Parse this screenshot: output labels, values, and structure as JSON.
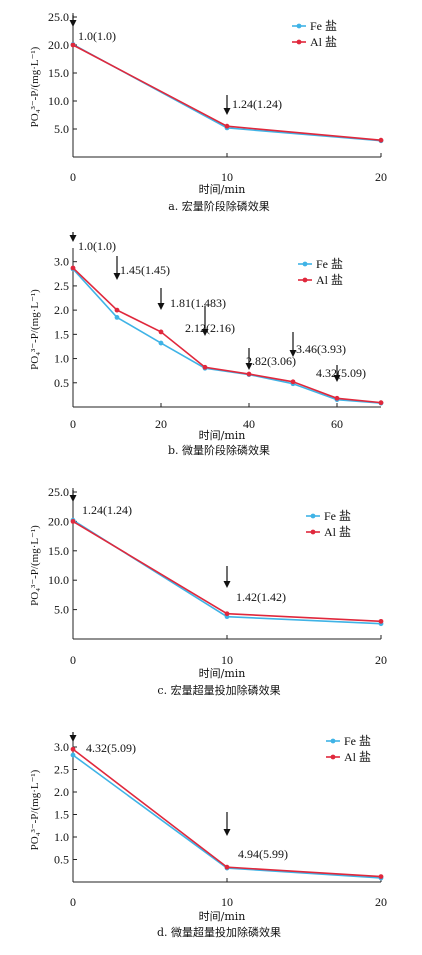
{
  "legend": {
    "fe_label": "Fe 盐",
    "al_label": "Al 盐"
  },
  "colors": {
    "fe": "#3fb3e6",
    "al": "#e0283c",
    "axis": "#222222"
  },
  "chart_data": [
    {
      "type": "line",
      "caption": "a. 宏量阶段除磷效果",
      "ylabel": "PO₄³⁻-P/(mg·L⁻¹)",
      "xlabel": "时间/min",
      "xlim": [
        0,
        20
      ],
      "ylim": [
        0,
        25
      ],
      "xticks": [
        0,
        10,
        20
      ],
      "yticks": [
        "5.0",
        "10.0",
        "15.0",
        "20.0",
        "25.0"
      ],
      "series": [
        {
          "name": "Fe 盐",
          "x": [
            0,
            10,
            20
          ],
          "y": [
            20.1,
            5.2,
            2.9
          ]
        },
        {
          "name": "Al 盐",
          "x": [
            0,
            10,
            20
          ],
          "y": [
            20.0,
            5.5,
            3.0
          ]
        }
      ],
      "annotations": [
        {
          "x": 0,
          "text": "1.0(1.0)"
        },
        {
          "x": 10,
          "text": "1.24(1.24)"
        }
      ]
    },
    {
      "type": "line",
      "caption": "b. 微量阶段除磷效果",
      "ylabel": "PO₄³⁻-P/(mg·L⁻¹)",
      "xlabel": "时间/min",
      "xlim": [
        0,
        70
      ],
      "ylim": [
        0,
        3.2
      ],
      "xticks": [
        0,
        20,
        40,
        60
      ],
      "yticks": [
        "0.5",
        "1.0",
        "1.5",
        "2.0",
        "2.5",
        "3.0"
      ],
      "series": [
        {
          "name": "Fe 盐",
          "x": [
            0,
            10,
            20,
            30,
            40,
            50,
            60,
            70
          ],
          "y": [
            2.85,
            1.85,
            1.32,
            0.8,
            0.67,
            0.48,
            0.15,
            0.08
          ]
        },
        {
          "name": "Al 盐",
          "x": [
            0,
            10,
            20,
            30,
            40,
            50,
            60,
            70
          ],
          "y": [
            2.87,
            2.0,
            1.55,
            0.82,
            0.68,
            0.52,
            0.18,
            0.09
          ]
        }
      ],
      "annotations": [
        {
          "x": 0,
          "text": "1.0(1.0)"
        },
        {
          "x": 10,
          "text": "1.45(1.45)"
        },
        {
          "x": 20,
          "text": "1.81(1.483)"
        },
        {
          "x": 30,
          "text": "2.12(2.16)"
        },
        {
          "x": 40,
          "text": "2.82(3.06)"
        },
        {
          "x": 50,
          "text": "3.46(3.93)"
        },
        {
          "x": 60,
          "text": "4.32(5.09)"
        }
      ]
    },
    {
      "type": "line",
      "caption": "c. 宏量超量投加除磷效果",
      "ylabel": "PO₄³⁻-P/(mg·L⁻¹)",
      "xlabel": "时间/min",
      "xlim": [
        0,
        20
      ],
      "ylim": [
        0,
        25
      ],
      "xticks": [
        0,
        10,
        20
      ],
      "yticks": [
        "5.0",
        "10.0",
        "15.0",
        "20.0",
        "25.0"
      ],
      "series": [
        {
          "name": "Fe 盐",
          "x": [
            0,
            10,
            20
          ],
          "y": [
            20.2,
            3.8,
            2.6
          ]
        },
        {
          "name": "Al 盐",
          "x": [
            0,
            10,
            20
          ],
          "y": [
            20.0,
            4.3,
            3.0
          ]
        }
      ],
      "annotations": [
        {
          "x": 0,
          "text": "1.24(1.24)"
        },
        {
          "x": 10,
          "text": "1.42(1.42)"
        }
      ]
    },
    {
      "type": "line",
      "caption": "d. 微量超量投加除磷效果",
      "ylabel": "PO₄³⁻-P/(mg·L⁻¹)",
      "xlabel": "时间/min",
      "xlim": [
        0,
        20
      ],
      "ylim": [
        0,
        3.2
      ],
      "xticks": [
        0,
        10,
        20
      ],
      "yticks": [
        "0.5",
        "1.0",
        "1.5",
        "2.0",
        "2.5",
        "3.0"
      ],
      "series": [
        {
          "name": "Fe 盐",
          "x": [
            0,
            10,
            20
          ],
          "y": [
            2.82,
            0.31,
            0.09
          ]
        },
        {
          "name": "Al 盐",
          "x": [
            0,
            10,
            20
          ],
          "y": [
            2.95,
            0.33,
            0.12
          ]
        }
      ],
      "annotations": [
        {
          "x": 0,
          "text": "4.32(5.09)"
        },
        {
          "x": 10,
          "text": "4.94(5.99)"
        }
      ]
    }
  ]
}
